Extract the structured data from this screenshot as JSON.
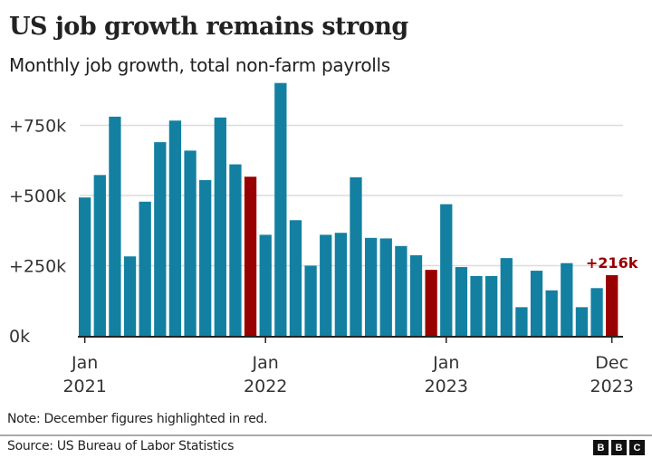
{
  "chart_data": {
    "type": "bar",
    "title": "US job growth remains strong",
    "subtitle": "Monthly job growth, total non-farm payrolls",
    "xlabel": "",
    "ylabel": "",
    "ylim": [
      0,
      900
    ],
    "yticks": [
      {
        "value": 0,
        "label": "0k"
      },
      {
        "value": 250,
        "label": "+250k"
      },
      {
        "value": 500,
        "label": "+500k"
      },
      {
        "value": 750,
        "label": "+750k"
      }
    ],
    "grid": true,
    "xticks": [
      {
        "index": 0,
        "month": "Jan",
        "year": "2021"
      },
      {
        "index": 12,
        "month": "Jan",
        "year": "2022"
      },
      {
        "index": 24,
        "month": "Jan",
        "year": "2023"
      },
      {
        "index": 35,
        "month": "Dec",
        "year": "2023"
      }
    ],
    "categories": [
      "Jan 2021",
      "Feb 2021",
      "Mar 2021",
      "Apr 2021",
      "May 2021",
      "Jun 2021",
      "Jul 2021",
      "Aug 2021",
      "Sep 2021",
      "Oct 2021",
      "Nov 2021",
      "Dec 2021",
      "Jan 2022",
      "Feb 2022",
      "Mar 2022",
      "Apr 2022",
      "May 2022",
      "Jun 2022",
      "Jul 2022",
      "Aug 2022",
      "Sep 2022",
      "Oct 2022",
      "Nov 2022",
      "Dec 2022",
      "Jan 2023",
      "Feb 2023",
      "Mar 2023",
      "Apr 2023",
      "May 2023",
      "Jun 2023",
      "Jul 2023",
      "Aug 2023",
      "Sep 2023",
      "Oct 2023",
      "Nov 2023",
      "Dec 2023"
    ],
    "values": [
      493,
      573,
      781,
      283,
      478,
      690,
      767,
      660,
      555,
      778,
      611,
      567,
      360,
      901,
      412,
      250,
      360,
      367,
      565,
      349,
      347,
      320,
      287,
      235,
      469,
      245,
      213,
      213,
      277,
      102,
      232,
      162,
      259,
      102,
      170,
      216
    ],
    "highlighted": [
      11,
      23,
      35
    ],
    "annotation": {
      "index": 35,
      "label": "+216k"
    },
    "colors": {
      "bar": "#1380a1",
      "highlight": "#990000",
      "grid": "#dcdcdc",
      "axis": "#222222"
    }
  },
  "note": "Note: December figures highlighted in red.",
  "source": "Source: US Bureau of Labor Statistics",
  "logo": [
    "B",
    "B",
    "C"
  ]
}
